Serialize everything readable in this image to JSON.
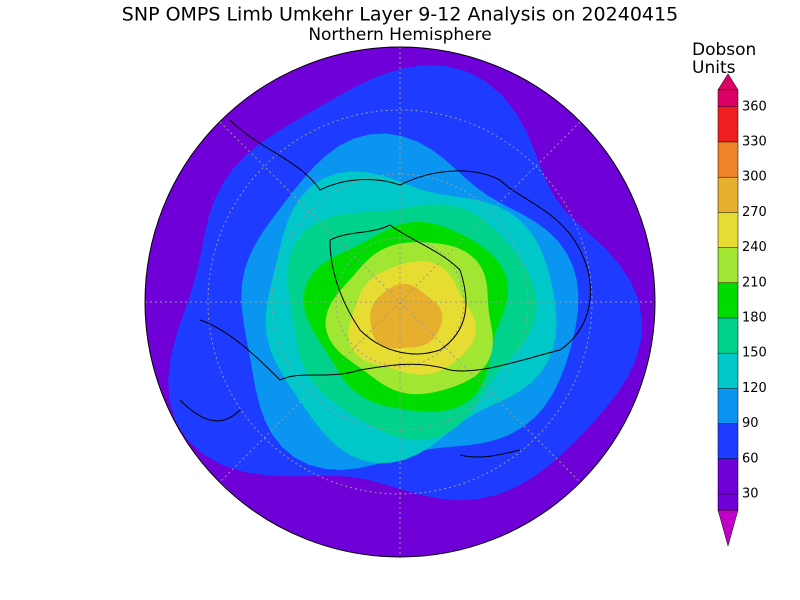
{
  "title": "SNP OMPS Limb Umkehr Layer 9-12 Analysis on 20240415",
  "subtitle": "Northern Hemisphere",
  "colorbar": {
    "label": [
      "Dobson",
      "Units"
    ],
    "ticks": [
      30,
      60,
      90,
      120,
      150,
      180,
      210,
      240,
      270,
      300,
      330,
      360
    ],
    "under_color": "#c000c8",
    "over_color": "#dc0064",
    "colors": [
      "#7000d8",
      "#7000d8",
      "#1e3cff",
      "#0a96f0",
      "#00c8c8",
      "#00d28c",
      "#00dc00",
      "#a0e632",
      "#e6dc32",
      "#e6af2d",
      "#f08228",
      "#f01e1e",
      "#dc0064"
    ]
  }
}
